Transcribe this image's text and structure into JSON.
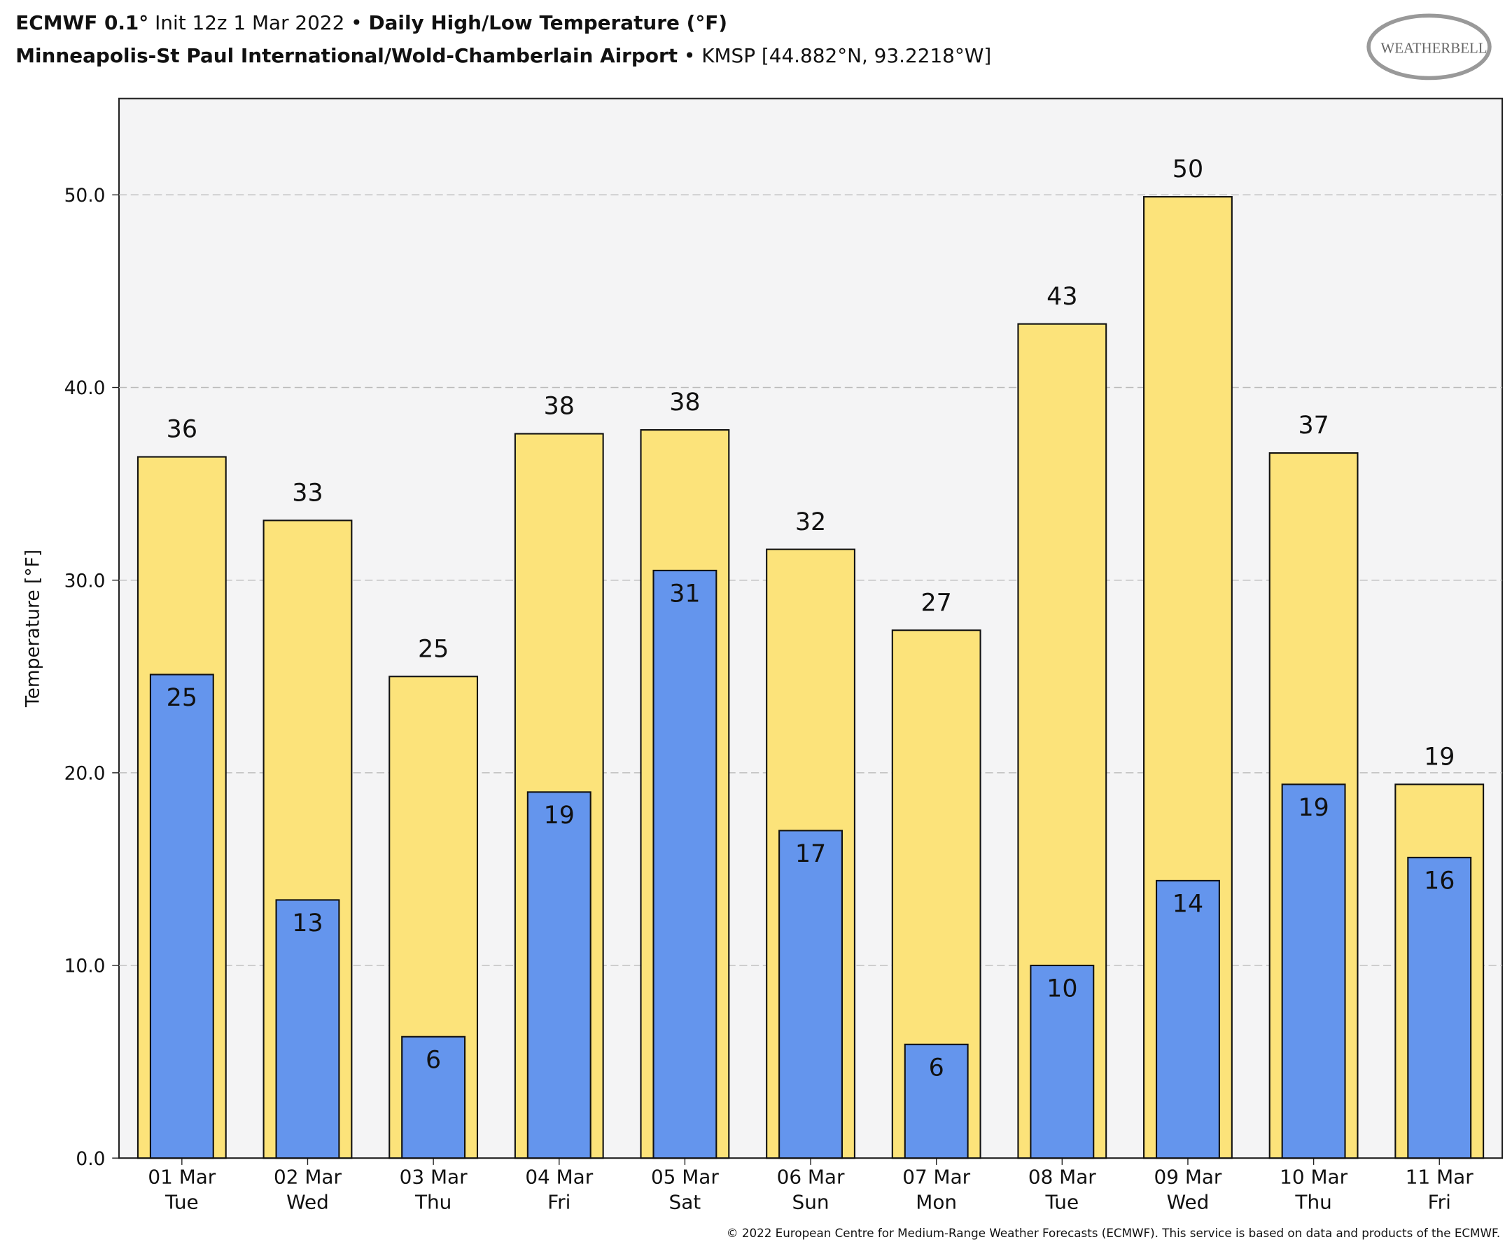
{
  "title_parts": [
    "ECMWF 0.1°",
    " Init 12z 1 Mar 2022 • ",
    "Daily High/Low Temperature (°F)"
  ],
  "subtitle_parts": [
    "Minneapolis-St Paul International/Wold-Chamberlain Airport",
    " • KMSP [44.882°N, 93.2218°W]"
  ],
  "logo": "WEATHERBELL",
  "footer": "© 2022 European Centre for Medium-Range Weather Forecasts (ECMWF). This service is based on data and products of the ECMWF.",
  "chart_data": {
    "type": "bar",
    "ylabel": "Temperature [°F]",
    "categories": [
      [
        "01 Mar",
        "Tue"
      ],
      [
        "02 Mar",
        "Wed"
      ],
      [
        "03 Mar",
        "Thu"
      ],
      [
        "04 Mar",
        "Fri"
      ],
      [
        "05 Mar",
        "Sat"
      ],
      [
        "06 Mar",
        "Sun"
      ],
      [
        "07 Mar",
        "Mon"
      ],
      [
        "08 Mar",
        "Tue"
      ],
      [
        "09 Mar",
        "Wed"
      ],
      [
        "10 Mar",
        "Thu"
      ],
      [
        "11 Mar",
        "Fri"
      ]
    ],
    "series": [
      {
        "color": "#fce37a",
        "values": [
          36.4,
          33.1,
          25.0,
          37.6,
          37.8,
          31.6,
          27.4,
          43.3,
          49.9,
          36.6,
          19.4
        ],
        "value_labels": [
          "36",
          "33",
          "25",
          "38",
          "38",
          "32",
          "27",
          "43",
          "50",
          "37",
          "19"
        ]
      },
      {
        "color": "#6495ed",
        "values": [
          25.1,
          13.4,
          6.3,
          19.0,
          30.5,
          17.0,
          5.9,
          10.0,
          14.4,
          19.4,
          15.6
        ],
        "value_labels": [
          "25",
          "13",
          "6",
          "19",
          "31",
          "17",
          "6",
          "10",
          "14",
          "19",
          "16"
        ]
      }
    ],
    "ylim": [
      0,
      55
    ],
    "yticks": [
      {
        "value": 0,
        "label": "0.0"
      },
      {
        "value": 10,
        "label": "10.0"
      },
      {
        "value": 20,
        "label": "20.0"
      },
      {
        "value": 30,
        "label": "30.0"
      },
      {
        "value": 40,
        "label": "40.0"
      },
      {
        "value": 50,
        "label": "50.0"
      }
    ],
    "grid": true
  }
}
